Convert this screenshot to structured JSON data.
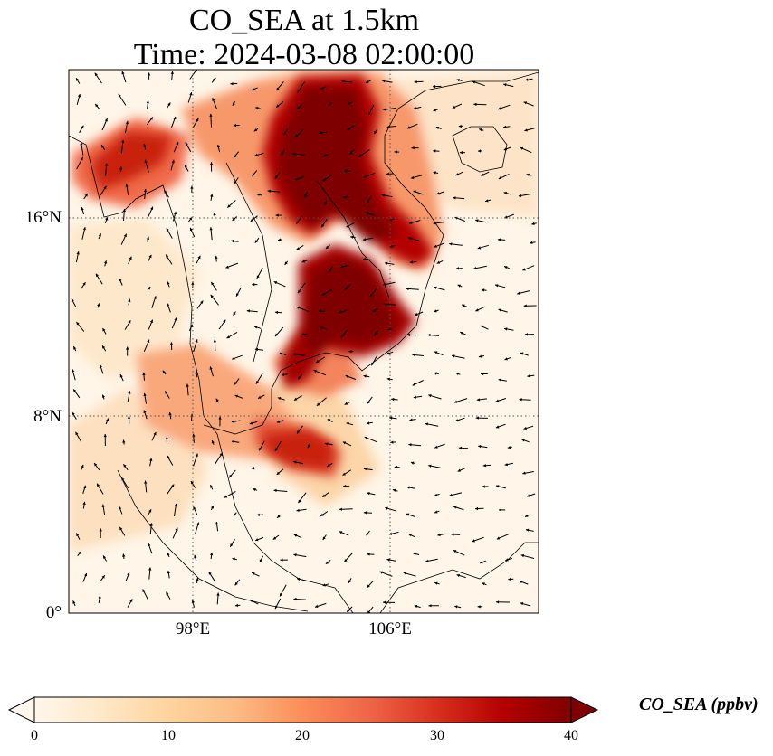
{
  "title_line1": "CO_SEA at 1.5km",
  "title_line2": "Time: 2024-03-08 02:00:00",
  "map": {
    "lon_range": [
      93,
      112
    ],
    "lat_range": [
      0,
      22
    ],
    "lat_ticks": [
      {
        "value": 0,
        "label": "0°"
      },
      {
        "value": 8,
        "label": "8°N"
      },
      {
        "value": 16,
        "label": "16°N"
      }
    ],
    "lon_ticks": [
      {
        "value": 98,
        "label": "98°E"
      },
      {
        "value": 106,
        "label": "106°E"
      }
    ],
    "gridlines": "dotted"
  },
  "colorbar": {
    "title": "CO_SEA (ppbv)",
    "min": 0,
    "max": 40,
    "ticks": [
      "0",
      "10",
      "20",
      "30",
      "40"
    ],
    "colormap": "OrRd",
    "colors": [
      "#fff7ec",
      "#fee8c8",
      "#fdd49e",
      "#fdbb84",
      "#fc8d59",
      "#ef6548",
      "#d7301f",
      "#b30000",
      "#7f0000"
    ],
    "extend": "both"
  }
}
